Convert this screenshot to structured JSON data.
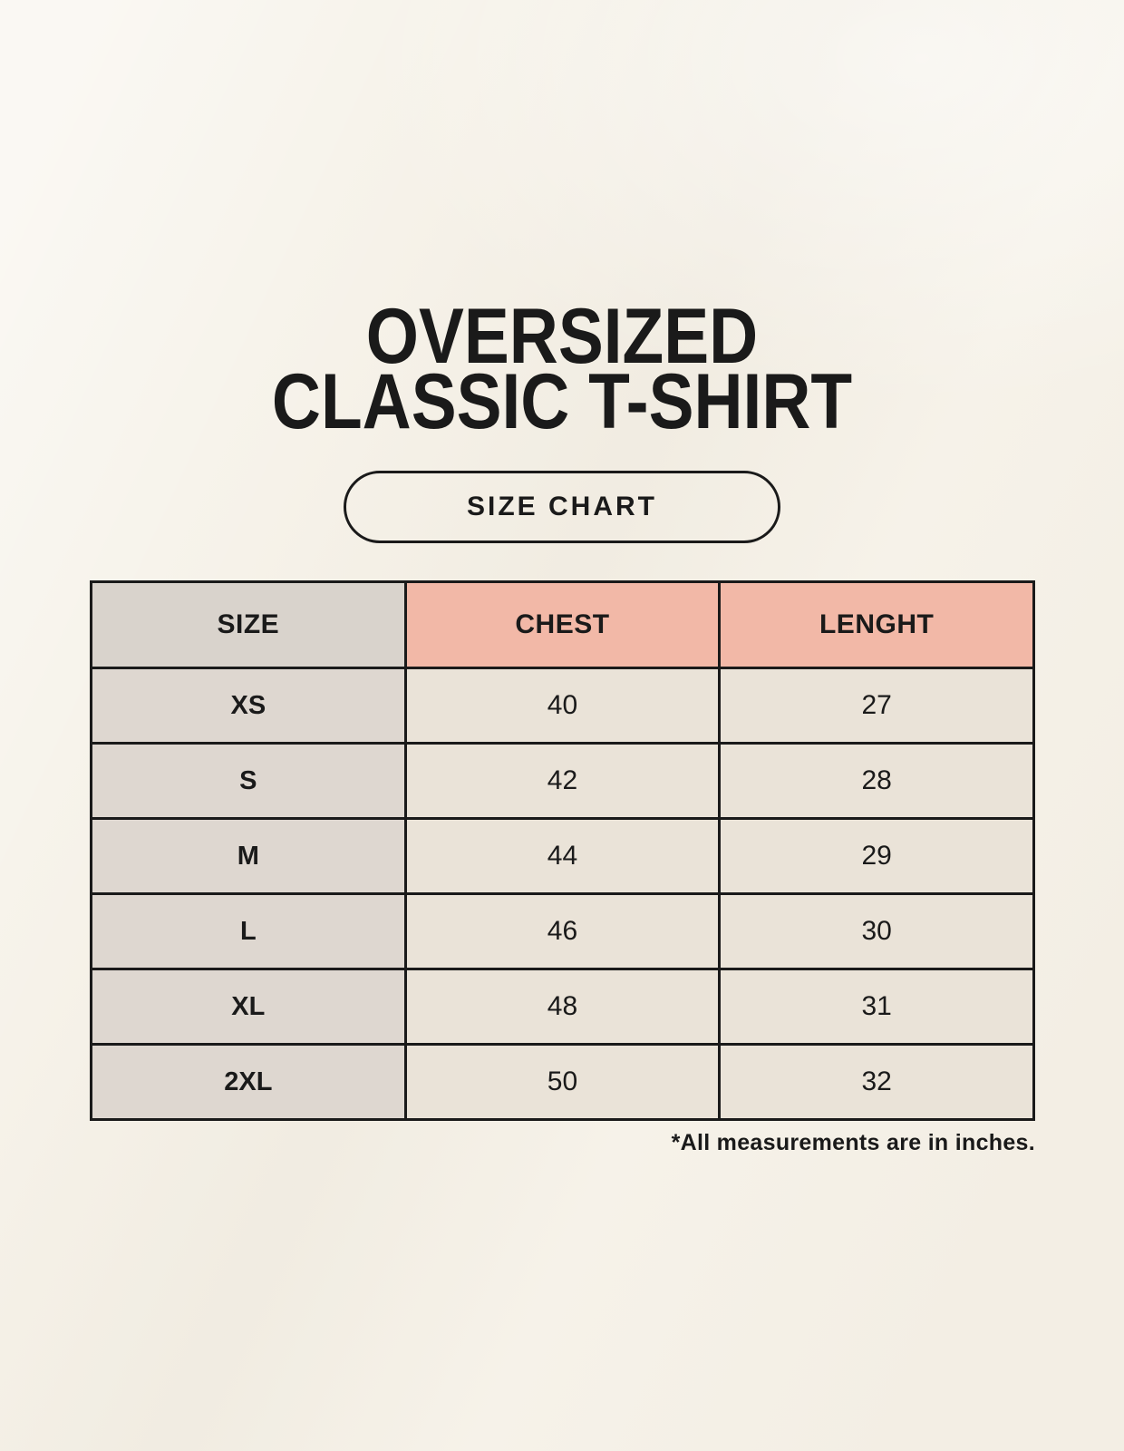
{
  "theme": {
    "page_bg": "#f6f2e9",
    "ink": "#1a1a1a",
    "table_border": "#1a1a1a",
    "header_size_bg": "#d9d3cc",
    "header_measure_bg": "#f2b8a7",
    "size_col_bg": "#ded7d0",
    "data_cell_bg": "#eae3d8"
  },
  "title": {
    "line1": "OVERSIZED",
    "line2": "CLASSIC T-SHIRT"
  },
  "size_chart_button": {
    "label": "SIZE CHART"
  },
  "table": {
    "columns": [
      "SIZE",
      "CHEST",
      "LENGHT"
    ],
    "rows": [
      {
        "size": "XS",
        "chest": "40",
        "length": "27"
      },
      {
        "size": "S",
        "chest": "42",
        "length": "28"
      },
      {
        "size": "M",
        "chest": "44",
        "length": "29"
      },
      {
        "size": "L",
        "chest": "46",
        "length": "30"
      },
      {
        "size": "XL",
        "chest": "48",
        "length": "31"
      },
      {
        "size": "2XL",
        "chest": "50",
        "length": "32"
      }
    ]
  },
  "footnote": "*All measurements are in inches.",
  "chart_data": {
    "type": "table",
    "title": "OVERSIZED CLASSIC T-SHIRT",
    "subtitle": "SIZE CHART",
    "columns": [
      "SIZE",
      "CHEST",
      "LENGHT"
    ],
    "rows": [
      [
        "XS",
        40,
        27
      ],
      [
        "S",
        42,
        28
      ],
      [
        "M",
        44,
        29
      ],
      [
        "L",
        46,
        30
      ],
      [
        "XL",
        48,
        31
      ],
      [
        "2XL",
        50,
        32
      ]
    ],
    "units": "inches",
    "note": "*All measurements are in inches."
  }
}
